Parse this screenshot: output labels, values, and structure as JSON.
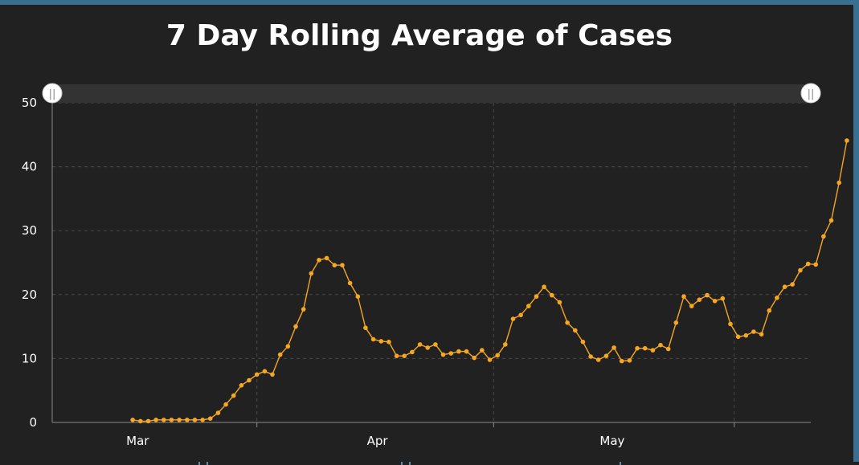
{
  "colors": {
    "background": "#212121",
    "line": "#f5a623",
    "grid": "#4a4a4a",
    "axis": "#8c8c8c",
    "text": "#ffffff",
    "scrollbar": "#333333",
    "handle": "#ffffff"
  },
  "scrollbar": {
    "start_handle_icon": "grip-lines-icon",
    "end_handle_icon": "grip-lines-icon",
    "handle_glyph": "||"
  },
  "chart_data": {
    "type": "line",
    "title": "7 Day Rolling Average of Cases",
    "xlabel": "",
    "ylabel": "",
    "ylim": [
      0,
      50
    ],
    "yticks": [
      0,
      10,
      20,
      30,
      40,
      50
    ],
    "grid": true,
    "x_tick_labels": [
      {
        "label": "Mar",
        "day_index": 4
      },
      {
        "label": "Apr",
        "day_index": 35
      },
      {
        "label": "May",
        "day_index": 65
      }
    ],
    "x_domain_days": [
      -2,
      93
    ],
    "x_start_day_index": 4,
    "series": [
      {
        "name": "7 Day Rolling Average of Cases",
        "values": [
          0.4,
          0.2,
          0.2,
          0.4,
          0.4,
          0.4,
          0.4,
          0.4,
          0.4,
          0.4,
          0.6,
          1.5,
          2.8,
          4.2,
          5.8,
          6.6,
          7.5,
          8.0,
          7.5,
          10.6,
          11.9,
          15.0,
          17.7,
          23.3,
          25.4,
          25.7,
          24.6,
          24.6,
          21.8,
          19.7,
          14.8,
          13.0,
          12.7,
          12.6,
          10.4,
          10.4,
          11.0,
          12.2,
          11.7,
          12.2,
          10.6,
          10.8,
          11.1,
          11.1,
          10.1,
          11.3,
          9.8,
          10.5,
          12.2,
          16.2,
          16.8,
          18.2,
          19.7,
          21.2,
          19.9,
          18.8,
          15.6,
          14.4,
          12.6,
          10.3,
          9.8,
          10.4,
          11.7,
          9.6,
          9.7,
          11.6,
          11.6,
          11.3,
          12.1,
          11.5,
          15.6,
          19.7,
          18.2,
          19.2,
          19.9,
          19.0,
          19.4,
          15.4,
          13.4,
          13.6,
          14.2,
          13.8,
          17.5,
          19.5,
          21.2,
          21.6,
          23.8,
          24.8,
          24.7,
          29.1,
          31.6,
          37.5,
          44.1
        ]
      }
    ]
  }
}
